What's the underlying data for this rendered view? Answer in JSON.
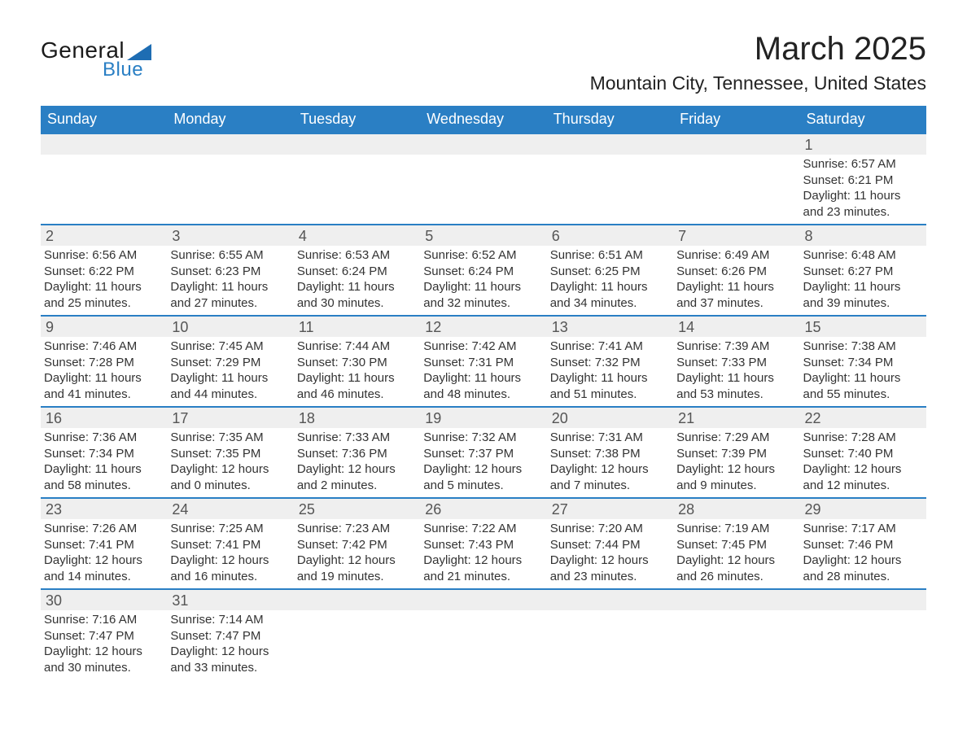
{
  "logo": {
    "text1": "General",
    "text2": "Blue"
  },
  "title": "March 2025",
  "location": "Mountain City, Tennessee, United States",
  "colors": {
    "header_bg": "#2a7fc4",
    "header_text": "#ffffff",
    "row_border": "#2a7fc4",
    "daynum_bg": "#efefef",
    "text": "#333333"
  },
  "day_names": [
    "Sunday",
    "Monday",
    "Tuesday",
    "Wednesday",
    "Thursday",
    "Friday",
    "Saturday"
  ],
  "weeks": [
    [
      {
        "blank": true
      },
      {
        "blank": true
      },
      {
        "blank": true
      },
      {
        "blank": true
      },
      {
        "blank": true
      },
      {
        "blank": true
      },
      {
        "num": "1",
        "sunrise": "Sunrise: 6:57 AM",
        "sunset": "Sunset: 6:21 PM",
        "day1": "Daylight: 11 hours",
        "day2": "and 23 minutes."
      }
    ],
    [
      {
        "num": "2",
        "sunrise": "Sunrise: 6:56 AM",
        "sunset": "Sunset: 6:22 PM",
        "day1": "Daylight: 11 hours",
        "day2": "and 25 minutes."
      },
      {
        "num": "3",
        "sunrise": "Sunrise: 6:55 AM",
        "sunset": "Sunset: 6:23 PM",
        "day1": "Daylight: 11 hours",
        "day2": "and 27 minutes."
      },
      {
        "num": "4",
        "sunrise": "Sunrise: 6:53 AM",
        "sunset": "Sunset: 6:24 PM",
        "day1": "Daylight: 11 hours",
        "day2": "and 30 minutes."
      },
      {
        "num": "5",
        "sunrise": "Sunrise: 6:52 AM",
        "sunset": "Sunset: 6:24 PM",
        "day1": "Daylight: 11 hours",
        "day2": "and 32 minutes."
      },
      {
        "num": "6",
        "sunrise": "Sunrise: 6:51 AM",
        "sunset": "Sunset: 6:25 PM",
        "day1": "Daylight: 11 hours",
        "day2": "and 34 minutes."
      },
      {
        "num": "7",
        "sunrise": "Sunrise: 6:49 AM",
        "sunset": "Sunset: 6:26 PM",
        "day1": "Daylight: 11 hours",
        "day2": "and 37 minutes."
      },
      {
        "num": "8",
        "sunrise": "Sunrise: 6:48 AM",
        "sunset": "Sunset: 6:27 PM",
        "day1": "Daylight: 11 hours",
        "day2": "and 39 minutes."
      }
    ],
    [
      {
        "num": "9",
        "sunrise": "Sunrise: 7:46 AM",
        "sunset": "Sunset: 7:28 PM",
        "day1": "Daylight: 11 hours",
        "day2": "and 41 minutes."
      },
      {
        "num": "10",
        "sunrise": "Sunrise: 7:45 AM",
        "sunset": "Sunset: 7:29 PM",
        "day1": "Daylight: 11 hours",
        "day2": "and 44 minutes."
      },
      {
        "num": "11",
        "sunrise": "Sunrise: 7:44 AM",
        "sunset": "Sunset: 7:30 PM",
        "day1": "Daylight: 11 hours",
        "day2": "and 46 minutes."
      },
      {
        "num": "12",
        "sunrise": "Sunrise: 7:42 AM",
        "sunset": "Sunset: 7:31 PM",
        "day1": "Daylight: 11 hours",
        "day2": "and 48 minutes."
      },
      {
        "num": "13",
        "sunrise": "Sunrise: 7:41 AM",
        "sunset": "Sunset: 7:32 PM",
        "day1": "Daylight: 11 hours",
        "day2": "and 51 minutes."
      },
      {
        "num": "14",
        "sunrise": "Sunrise: 7:39 AM",
        "sunset": "Sunset: 7:33 PM",
        "day1": "Daylight: 11 hours",
        "day2": "and 53 minutes."
      },
      {
        "num": "15",
        "sunrise": "Sunrise: 7:38 AM",
        "sunset": "Sunset: 7:34 PM",
        "day1": "Daylight: 11 hours",
        "day2": "and 55 minutes."
      }
    ],
    [
      {
        "num": "16",
        "sunrise": "Sunrise: 7:36 AM",
        "sunset": "Sunset: 7:34 PM",
        "day1": "Daylight: 11 hours",
        "day2": "and 58 minutes."
      },
      {
        "num": "17",
        "sunrise": "Sunrise: 7:35 AM",
        "sunset": "Sunset: 7:35 PM",
        "day1": "Daylight: 12 hours",
        "day2": "and 0 minutes."
      },
      {
        "num": "18",
        "sunrise": "Sunrise: 7:33 AM",
        "sunset": "Sunset: 7:36 PM",
        "day1": "Daylight: 12 hours",
        "day2": "and 2 minutes."
      },
      {
        "num": "19",
        "sunrise": "Sunrise: 7:32 AM",
        "sunset": "Sunset: 7:37 PM",
        "day1": "Daylight: 12 hours",
        "day2": "and 5 minutes."
      },
      {
        "num": "20",
        "sunrise": "Sunrise: 7:31 AM",
        "sunset": "Sunset: 7:38 PM",
        "day1": "Daylight: 12 hours",
        "day2": "and 7 minutes."
      },
      {
        "num": "21",
        "sunrise": "Sunrise: 7:29 AM",
        "sunset": "Sunset: 7:39 PM",
        "day1": "Daylight: 12 hours",
        "day2": "and 9 minutes."
      },
      {
        "num": "22",
        "sunrise": "Sunrise: 7:28 AM",
        "sunset": "Sunset: 7:40 PM",
        "day1": "Daylight: 12 hours",
        "day2": "and 12 minutes."
      }
    ],
    [
      {
        "num": "23",
        "sunrise": "Sunrise: 7:26 AM",
        "sunset": "Sunset: 7:41 PM",
        "day1": "Daylight: 12 hours",
        "day2": "and 14 minutes."
      },
      {
        "num": "24",
        "sunrise": "Sunrise: 7:25 AM",
        "sunset": "Sunset: 7:41 PM",
        "day1": "Daylight: 12 hours",
        "day2": "and 16 minutes."
      },
      {
        "num": "25",
        "sunrise": "Sunrise: 7:23 AM",
        "sunset": "Sunset: 7:42 PM",
        "day1": "Daylight: 12 hours",
        "day2": "and 19 minutes."
      },
      {
        "num": "26",
        "sunrise": "Sunrise: 7:22 AM",
        "sunset": "Sunset: 7:43 PM",
        "day1": "Daylight: 12 hours",
        "day2": "and 21 minutes."
      },
      {
        "num": "27",
        "sunrise": "Sunrise: 7:20 AM",
        "sunset": "Sunset: 7:44 PM",
        "day1": "Daylight: 12 hours",
        "day2": "and 23 minutes."
      },
      {
        "num": "28",
        "sunrise": "Sunrise: 7:19 AM",
        "sunset": "Sunset: 7:45 PM",
        "day1": "Daylight: 12 hours",
        "day2": "and 26 minutes."
      },
      {
        "num": "29",
        "sunrise": "Sunrise: 7:17 AM",
        "sunset": "Sunset: 7:46 PM",
        "day1": "Daylight: 12 hours",
        "day2": "and 28 minutes."
      }
    ],
    [
      {
        "num": "30",
        "sunrise": "Sunrise: 7:16 AM",
        "sunset": "Sunset: 7:47 PM",
        "day1": "Daylight: 12 hours",
        "day2": "and 30 minutes."
      },
      {
        "num": "31",
        "sunrise": "Sunrise: 7:14 AM",
        "sunset": "Sunset: 7:47 PM",
        "day1": "Daylight: 12 hours",
        "day2": "and 33 minutes."
      },
      {
        "blank": true
      },
      {
        "blank": true
      },
      {
        "blank": true
      },
      {
        "blank": true
      },
      {
        "blank": true
      }
    ]
  ]
}
